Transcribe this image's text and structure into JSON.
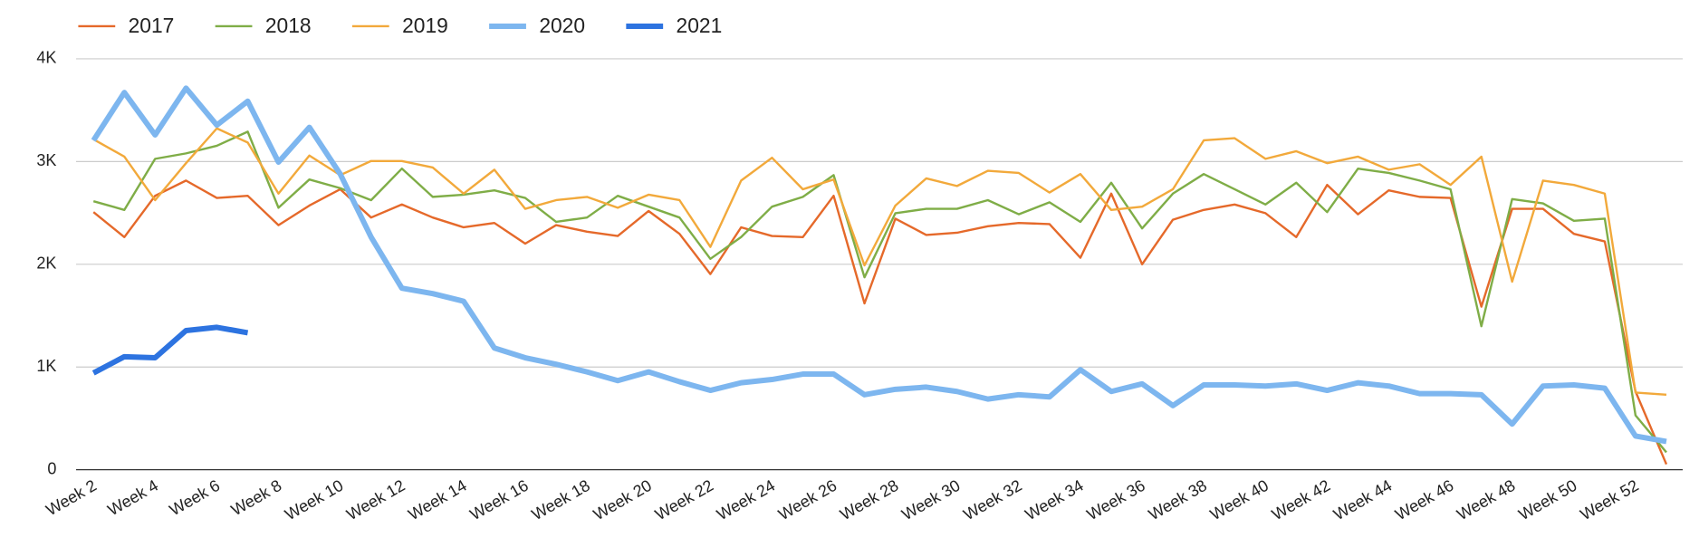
{
  "chart_data": {
    "type": "line",
    "categories": [
      "Week 2",
      null,
      "Week 4",
      null,
      "Week 6",
      null,
      "Week 8",
      null,
      "Week 10",
      null,
      "Week 12",
      null,
      "Week 14",
      null,
      "Week 16",
      null,
      "Week 18",
      null,
      "Week 20",
      null,
      "Week 22",
      null,
      "Week 24",
      null,
      "Week 26",
      null,
      "Week 28",
      null,
      "Week 30",
      null,
      "Week 32",
      null,
      "Week 34",
      null,
      "Week 36",
      null,
      "Week 38",
      null,
      "Week 40",
      null,
      "Week 42",
      null,
      "Week 44",
      null,
      "Week 46",
      null,
      "Week 48",
      null,
      "Week 50",
      null,
      "Week 52",
      null
    ],
    "series": [
      {
        "name": "2017",
        "color": "#e5692a",
        "width": 2,
        "values": [
          2508,
          2265,
          2667,
          2815,
          2646,
          2667,
          2381,
          2571,
          2730,
          2455,
          2582,
          2455,
          2360,
          2402,
          2201,
          2381,
          2317,
          2275,
          2519,
          2296,
          1905,
          2360,
          2275,
          2265,
          2667,
          1619,
          2444,
          2286,
          2307,
          2370,
          2402,
          2392,
          2063,
          2688,
          2000,
          2434,
          2529,
          2582,
          2497,
          2265,
          2772,
          2487,
          2720,
          2656,
          2646,
          1587,
          2540,
          2540,
          2296,
          2222,
          762,
          53
        ]
      },
      {
        "name": "2018",
        "color": "#7fad47",
        "width": 2,
        "values": [
          2614,
          2529,
          3026,
          3079,
          3153,
          3291,
          2550,
          2825,
          2741,
          2624,
          2931,
          2656,
          2677,
          2720,
          2646,
          2413,
          2455,
          2667,
          2561,
          2455,
          2053,
          2265,
          2561,
          2656,
          2868,
          1873,
          2497,
          2540,
          2540,
          2624,
          2487,
          2603,
          2413,
          2794,
          2349,
          2688,
          2878,
          2730,
          2582,
          2794,
          2508,
          2931,
          2889,
          2815,
          2730,
          1397,
          2635,
          2593,
          2423,
          2444,
          529,
          169
        ]
      },
      {
        "name": "2019",
        "color": "#f2a93b",
        "width": 2,
        "values": [
          3217,
          3048,
          2624,
          2984,
          3323,
          3185,
          2688,
          3058,
          2868,
          3005,
          3005,
          2942,
          2688,
          2921,
          2540,
          2624,
          2656,
          2550,
          2677,
          2624,
          2169,
          2815,
          3037,
          2730,
          2825,
          1989,
          2571,
          2836,
          2762,
          2910,
          2889,
          2698,
          2878,
          2529,
          2561,
          2730,
          3206,
          3228,
          3026,
          3101,
          2984,
          3048,
          2921,
          2974,
          2772,
          3048,
          1831,
          2815,
          2772,
          2688,
          751,
          730
        ]
      },
      {
        "name": "2020",
        "color": "#7db6ef",
        "width": 5,
        "values": [
          3206,
          3672,
          3259,
          3714,
          3354,
          3587,
          2995,
          3333,
          2878,
          2265,
          1767,
          1714,
          1640,
          1185,
          1090,
          1026,
          952,
          868,
          952,
          857,
          772,
          847,
          878,
          931,
          931,
          730,
          783,
          804,
          762,
          688,
          730,
          709,
          974,
          762,
          836,
          624,
          825,
          825,
          815,
          836,
          772,
          847,
          815,
          741,
          741,
          730,
          444,
          815,
          825,
          794,
          328,
          275
        ]
      },
      {
        "name": "2021",
        "color": "#2d73e0",
        "width": 5,
        "values": [
          942,
          1101,
          1090,
          1354,
          1386,
          1333,
          null,
          null,
          null,
          null,
          null,
          null,
          null,
          null,
          null,
          null,
          null,
          null,
          null,
          null,
          null,
          null,
          null,
          null,
          null,
          null,
          null,
          null,
          null,
          null,
          null,
          null,
          null,
          null,
          null,
          null,
          null,
          null,
          null,
          null,
          null,
          null,
          null,
          null,
          null,
          null,
          null,
          null,
          null,
          null,
          null,
          null
        ]
      }
    ],
    "ylim": [
      0,
      4000
    ],
    "yticks": [
      0,
      {
        "value": 1000,
        "label": "1K"
      },
      {
        "value": 2000,
        "label": "2K"
      },
      {
        "value": 3000,
        "label": "3K"
      },
      {
        "value": 4000,
        "label": "4K"
      }
    ],
    "grid": true,
    "legend": "top-left"
  }
}
